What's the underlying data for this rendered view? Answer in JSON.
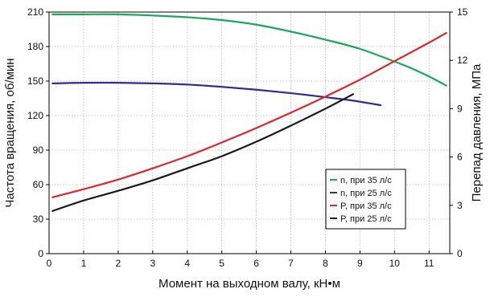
{
  "chart_data": {
    "type": "line",
    "xlabel": "Момент на выходном валу,  кН•м",
    "ylabel_left": "Частота вращения, об/мин",
    "ylabel_right": "Перепад давления, МПа",
    "xlim": [
      0,
      11.6
    ],
    "ylim_left": [
      0,
      210
    ],
    "ylim_right": [
      0,
      15
    ],
    "x_ticks": [
      "0",
      "1",
      "2",
      "3",
      "4",
      "5",
      "6",
      "7",
      "8",
      "9",
      "10",
      "11"
    ],
    "y_left_ticks": [
      "0",
      "30",
      "60",
      "90",
      "120",
      "150",
      "180",
      "210"
    ],
    "y_right_ticks": [
      "0",
      "3",
      "6",
      "9",
      "12",
      "15"
    ],
    "grid": true,
    "legend_position": "lower-right inside plot",
    "series": [
      {
        "name": "n, при 35 л/с",
        "axis": "left",
        "color": "#1aa85a",
        "x": [
          0.1,
          1,
          2,
          3,
          4,
          5,
          6,
          7,
          8,
          9,
          10,
          10.5,
          11,
          11.5
        ],
        "y": [
          208,
          208,
          208,
          207,
          205.5,
          203,
          199,
          193,
          186,
          178,
          167,
          161,
          154,
          146
        ]
      },
      {
        "name": "n, при 25 л/с",
        "axis": "left",
        "color": "#2b2f8f",
        "x": [
          0.1,
          1,
          2,
          3,
          4,
          5,
          6,
          7,
          8,
          8.8,
          9.6
        ],
        "y": [
          148,
          148.5,
          148.5,
          148,
          147,
          145,
          142.5,
          139.5,
          136,
          133,
          129
        ]
      },
      {
        "name": "P, при 35 л/с",
        "axis": "right",
        "color": "#e0262c",
        "x": [
          0.1,
          1,
          2,
          3,
          4,
          5,
          6,
          7,
          8,
          9,
          10,
          11,
          11.5
        ],
        "y": [
          3.5,
          4.0,
          4.6,
          5.3,
          6.05,
          6.9,
          7.8,
          8.75,
          9.75,
          10.8,
          11.95,
          13.1,
          13.7
        ]
      },
      {
        "name": "P, при 25 л/с",
        "axis": "right",
        "color": "#1a1a1a",
        "x": [
          0.1,
          1,
          2,
          3,
          4,
          5,
          6,
          7,
          8,
          8.8
        ],
        "y": [
          2.65,
          3.3,
          3.9,
          4.55,
          5.3,
          6.05,
          6.95,
          7.95,
          9.0,
          9.9
        ]
      }
    ]
  }
}
